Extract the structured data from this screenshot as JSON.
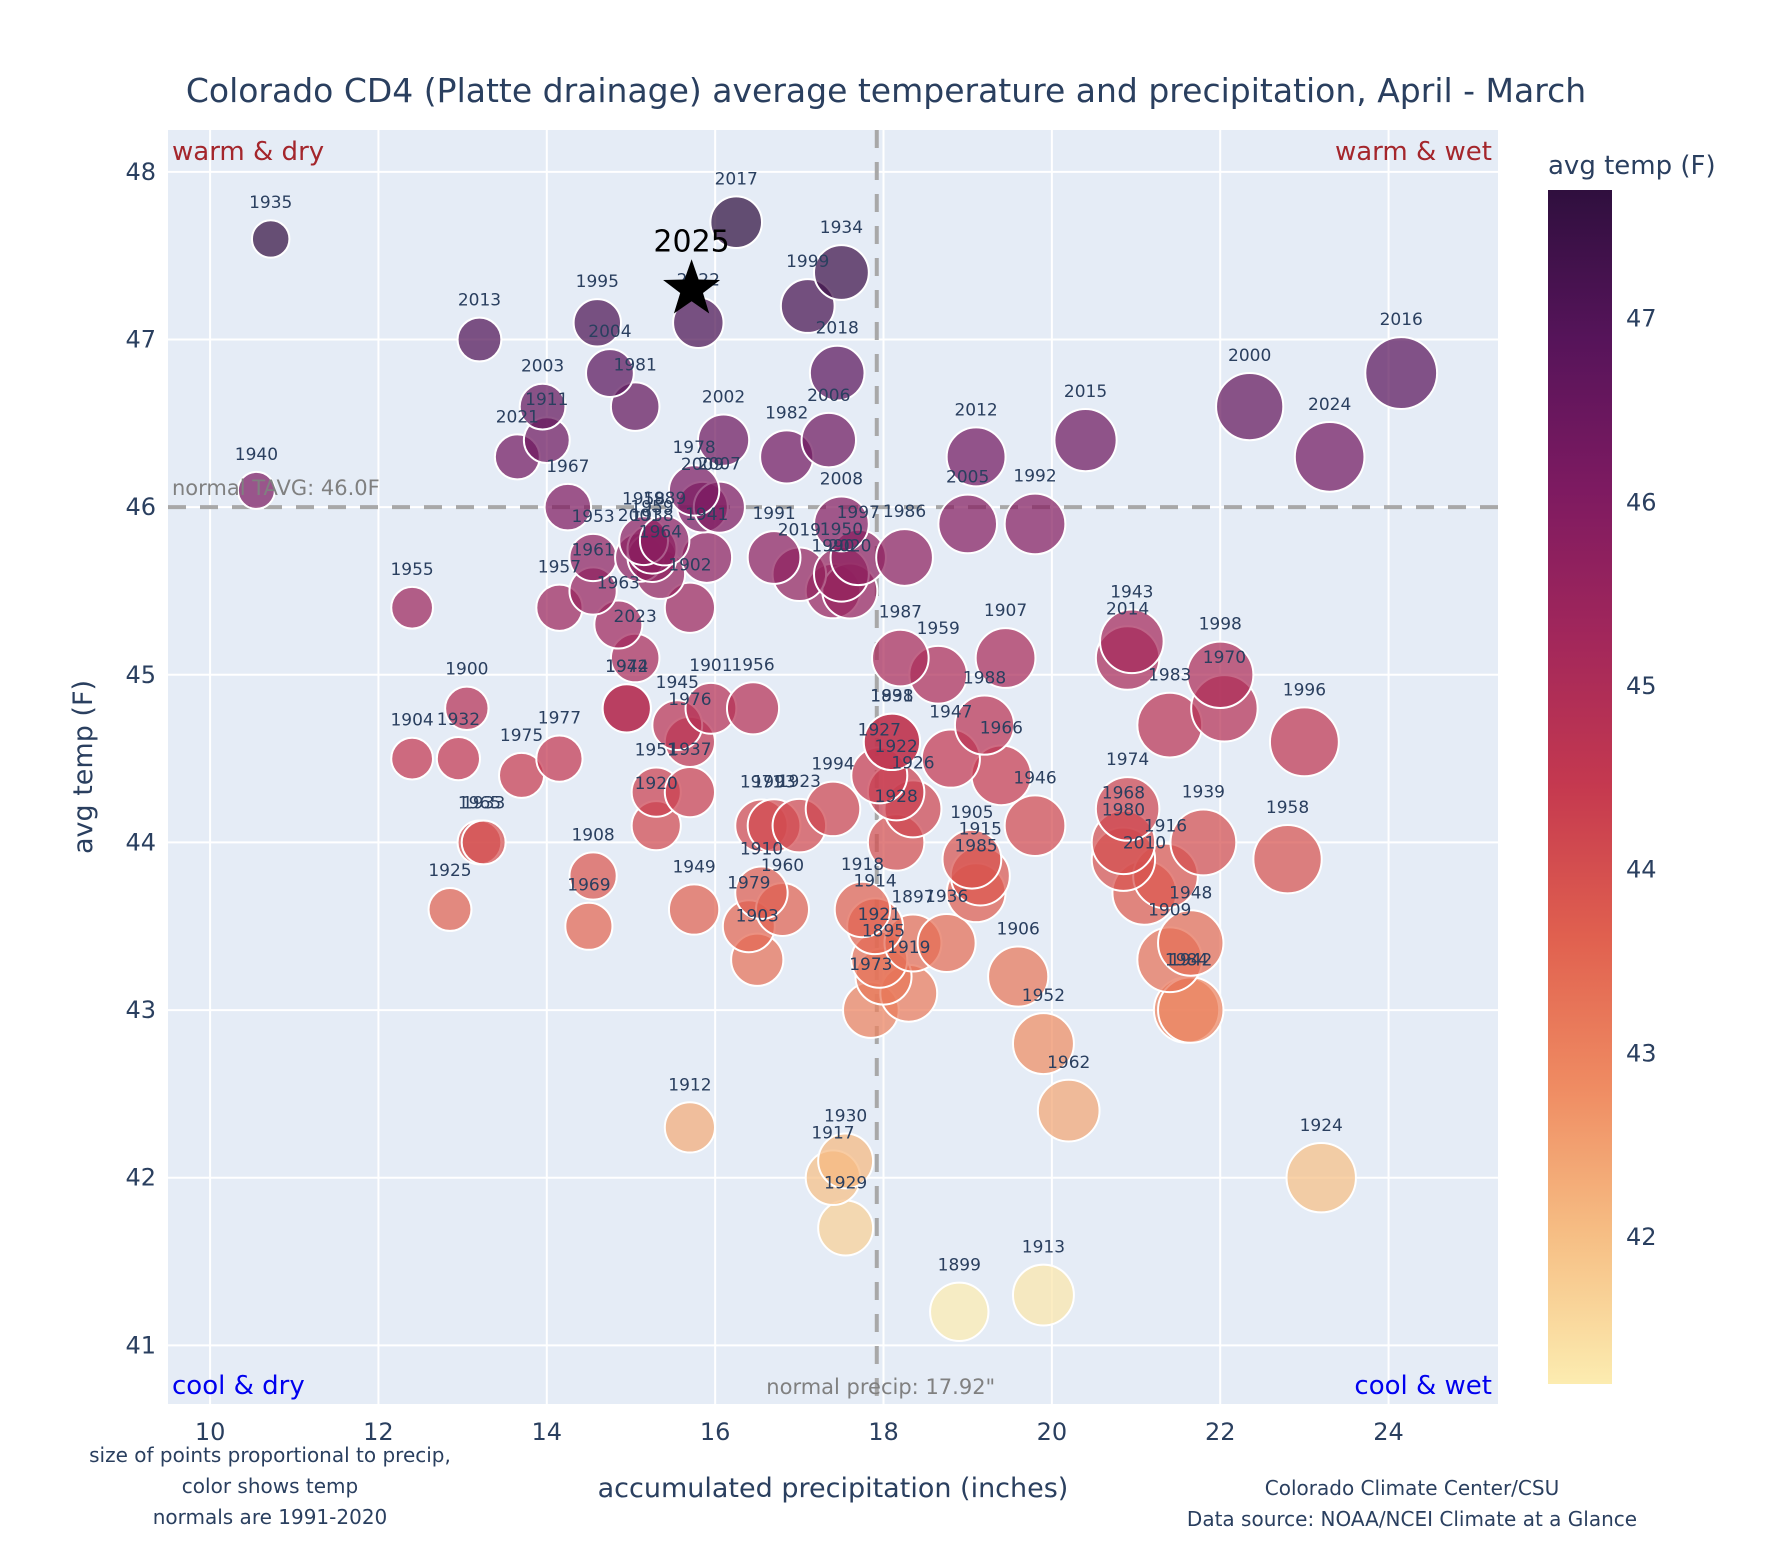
{
  "chart_data": {
    "type": "scatter",
    "title": "Colorado CD4 (Platte drainage) average temperature and precipitation, April - March",
    "xlabel": "accumulated precipitation (inches)",
    "ylabel": "avg temp (F)",
    "xlim": [
      9.5,
      25.3
    ],
    "ylim": [
      40.65,
      48.25
    ],
    "xticks": [
      10,
      12,
      14,
      16,
      18,
      20,
      22,
      24
    ],
    "yticks": [
      41,
      42,
      43,
      44,
      45,
      46,
      47,
      48
    ],
    "grid": true,
    "colorbar": {
      "title": "avg temp (F)",
      "ticks": [
        42,
        43,
        44,
        45,
        46,
        47
      ],
      "range": [
        41.2,
        47.7
      ],
      "colorscale": "magma-like (pale yellow low to dark purple high)",
      "colors": [
        "#fcecb0",
        "#f6be84",
        "#ef8b62",
        "#e0604f",
        "#c5394f",
        "#a2275b",
        "#7d1a61",
        "#56145a",
        "#2f0f3e"
      ]
    },
    "size_encoding": "proportional to precip",
    "reference_lines": {
      "normal_temp": {
        "value": 46.0,
        "label": "normal TAVG: 46.0F"
      },
      "normal_precip": {
        "value": 17.92,
        "label": "normal precip: 17.92\""
      }
    },
    "quadrant_labels": {
      "top_left": "warm & dry",
      "top_right": "warm & wet",
      "bottom_left": "cool & dry",
      "bottom_right": "cool & wet"
    },
    "highlight": {
      "year": "2025",
      "x": 15.72,
      "y": 47.3,
      "marker": "star"
    },
    "points": [
      {
        "year": "1935",
        "x": 10.72,
        "y": 47.6
      },
      {
        "year": "1940",
        "x": 10.55,
        "y": 46.1
      },
      {
        "year": "2013",
        "x": 13.2,
        "y": 47.0
      },
      {
        "year": "1995",
        "x": 14.6,
        "y": 47.1
      },
      {
        "year": "2004",
        "x": 14.75,
        "y": 46.8
      },
      {
        "year": "1981",
        "x": 15.05,
        "y": 46.6
      },
      {
        "year": "2003",
        "x": 13.95,
        "y": 46.6
      },
      {
        "year": "1911",
        "x": 14.0,
        "y": 46.4
      },
      {
        "year": "2021",
        "x": 13.65,
        "y": 46.3
      },
      {
        "year": "1967",
        "x": 14.25,
        "y": 46.0
      },
      {
        "year": "2022",
        "x": 15.8,
        "y": 47.1
      },
      {
        "year": "2017",
        "x": 16.25,
        "y": 47.7
      },
      {
        "year": "1934",
        "x": 17.5,
        "y": 47.4
      },
      {
        "year": "1999",
        "x": 17.1,
        "y": 47.2
      },
      {
        "year": "2018",
        "x": 17.45,
        "y": 46.8
      },
      {
        "year": "2002",
        "x": 16.1,
        "y": 46.4
      },
      {
        "year": "1982",
        "x": 16.85,
        "y": 46.3
      },
      {
        "year": "2006",
        "x": 17.35,
        "y": 46.4
      },
      {
        "year": "1978",
        "x": 15.75,
        "y": 46.1
      },
      {
        "year": "2009",
        "x": 15.85,
        "y": 46.0
      },
      {
        "year": "2007",
        "x": 16.05,
        "y": 46.0
      },
      {
        "year": "1953",
        "x": 14.55,
        "y": 45.7
      },
      {
        "year": "1958",
        "x": 15.15,
        "y": 45.8
      },
      {
        "year": "1959",
        "x": 15.25,
        "y": 45.75
      },
      {
        "year": "1989",
        "x": 15.4,
        "y": 45.8
      },
      {
        "year": "2001",
        "x": 15.1,
        "y": 45.7
      },
      {
        "year": "1938",
        "x": 15.25,
        "y": 45.7
      },
      {
        "year": "1941",
        "x": 15.9,
        "y": 45.7
      },
      {
        "year": "1964",
        "x": 15.35,
        "y": 45.6
      },
      {
        "year": "1961",
        "x": 14.55,
        "y": 45.5
      },
      {
        "year": "1957",
        "x": 14.15,
        "y": 45.4
      },
      {
        "year": "1902",
        "x": 15.7,
        "y": 45.4
      },
      {
        "year": "1963",
        "x": 14.85,
        "y": 45.3
      },
      {
        "year": "2023",
        "x": 15.05,
        "y": 45.1
      },
      {
        "year": "1955",
        "x": 12.4,
        "y": 45.4
      },
      {
        "year": "1991",
        "x": 16.7,
        "y": 45.7
      },
      {
        "year": "2019",
        "x": 17.0,
        "y": 45.6
      },
      {
        "year": "1990",
        "x": 17.4,
        "y": 45.5
      },
      {
        "year": "1950",
        "x": 17.5,
        "y": 45.6
      },
      {
        "year": "2020",
        "x": 17.6,
        "y": 45.5
      },
      {
        "year": "2008",
        "x": 17.5,
        "y": 45.9
      },
      {
        "year": "1997",
        "x": 17.7,
        "y": 45.7
      },
      {
        "year": "1986",
        "x": 18.25,
        "y": 45.7
      },
      {
        "year": "2012",
        "x": 19.1,
        "y": 46.3
      },
      {
        "year": "2005",
        "x": 19.0,
        "y": 45.9
      },
      {
        "year": "1992",
        "x": 19.8,
        "y": 45.9
      },
      {
        "year": "2015",
        "x": 20.4,
        "y": 46.4
      },
      {
        "year": "2000",
        "x": 22.35,
        "y": 46.6
      },
      {
        "year": "2024",
        "x": 23.3,
        "y": 46.3
      },
      {
        "year": "2016",
        "x": 24.15,
        "y": 46.8
      },
      {
        "year": "1987",
        "x": 18.2,
        "y": 45.1
      },
      {
        "year": "1959b",
        "x": 18.65,
        "y": 45.0
      },
      {
        "year": "1907",
        "x": 19.45,
        "y": 45.1
      },
      {
        "year": "1988",
        "x": 19.2,
        "y": 44.7
      },
      {
        "year": "1947",
        "x": 18.8,
        "y": 44.5
      },
      {
        "year": "1966",
        "x": 19.4,
        "y": 44.4
      },
      {
        "year": "1946",
        "x": 19.8,
        "y": 44.1
      },
      {
        "year": "1943",
        "x": 20.95,
        "y": 45.2
      },
      {
        "year": "2014",
        "x": 20.9,
        "y": 45.1
      },
      {
        "year": "1983",
        "x": 21.4,
        "y": 44.7
      },
      {
        "year": "1998",
        "x": 22.0,
        "y": 45.0
      },
      {
        "year": "1970",
        "x": 22.05,
        "y": 44.8
      },
      {
        "year": "1996",
        "x": 23.0,
        "y": 44.6
      },
      {
        "year": "1974",
        "x": 20.9,
        "y": 44.2
      },
      {
        "year": "1968",
        "x": 20.85,
        "y": 44.0
      },
      {
        "year": "1980",
        "x": 20.85,
        "y": 43.9
      },
      {
        "year": "1939",
        "x": 21.8,
        "y": 44.0
      },
      {
        "year": "1916",
        "x": 21.35,
        "y": 43.8
      },
      {
        "year": "2010",
        "x": 21.1,
        "y": 43.7
      },
      {
        "year": "1958b",
        "x": 22.8,
        "y": 43.9
      },
      {
        "year": "1948",
        "x": 21.65,
        "y": 43.4
      },
      {
        "year": "1909",
        "x": 21.4,
        "y": 43.3
      },
      {
        "year": "1984",
        "x": 21.6,
        "y": 43.0
      },
      {
        "year": "1942",
        "x": 21.65,
        "y": 43.0
      },
      {
        "year": "1924",
        "x": 23.2,
        "y": 42.0
      },
      {
        "year": "1900",
        "x": 13.05,
        "y": 44.8
      },
      {
        "year": "1904",
        "x": 12.4,
        "y": 44.5
      },
      {
        "year": "1932",
        "x": 12.95,
        "y": 44.5
      },
      {
        "year": "1975",
        "x": 13.7,
        "y": 44.4
      },
      {
        "year": "1977",
        "x": 14.15,
        "y": 44.5
      },
      {
        "year": "1944",
        "x": 14.95,
        "y": 44.8
      },
      {
        "year": "1972",
        "x": 14.95,
        "y": 44.8
      },
      {
        "year": "1945",
        "x": 15.55,
        "y": 44.7
      },
      {
        "year": "1976",
        "x": 15.7,
        "y": 44.6
      },
      {
        "year": "1901",
        "x": 15.95,
        "y": 44.8
      },
      {
        "year": "1956",
        "x": 16.45,
        "y": 44.8
      },
      {
        "year": "1951",
        "x": 15.3,
        "y": 44.3
      },
      {
        "year": "1937",
        "x": 15.7,
        "y": 44.3
      },
      {
        "year": "1920",
        "x": 15.3,
        "y": 44.1
      },
      {
        "year": "1965",
        "x": 13.2,
        "y": 44.0
      },
      {
        "year": "1933",
        "x": 13.25,
        "y": 44.0
      },
      {
        "year": "1908",
        "x": 14.55,
        "y": 43.8
      },
      {
        "year": "1925",
        "x": 12.85,
        "y": 43.6
      },
      {
        "year": "1969",
        "x": 14.5,
        "y": 43.5
      },
      {
        "year": "1971",
        "x": 16.55,
        "y": 44.1
      },
      {
        "year": "1993",
        "x": 16.7,
        "y": 44.1
      },
      {
        "year": "1923",
        "x": 17.0,
        "y": 44.1
      },
      {
        "year": "1994",
        "x": 17.4,
        "y": 44.2
      },
      {
        "year": "1898",
        "x": 18.1,
        "y": 44.6
      },
      {
        "year": "1931",
        "x": 18.1,
        "y": 44.6
      },
      {
        "year": "1927",
        "x": 17.95,
        "y": 44.4
      },
      {
        "year": "1922",
        "x": 18.15,
        "y": 44.3
      },
      {
        "year": "1926",
        "x": 18.35,
        "y": 44.2
      },
      {
        "year": "1928",
        "x": 18.15,
        "y": 44.0
      },
      {
        "year": "1905",
        "x": 19.05,
        "y": 43.9
      },
      {
        "year": "1915",
        "x": 19.15,
        "y": 43.8
      },
      {
        "year": "1985",
        "x": 19.1,
        "y": 43.7
      },
      {
        "year": "1949",
        "x": 15.75,
        "y": 43.6
      },
      {
        "year": "1910",
        "x": 16.55,
        "y": 43.7
      },
      {
        "year": "1960",
        "x": 16.8,
        "y": 43.6
      },
      {
        "year": "1979",
        "x": 16.4,
        "y": 43.5
      },
      {
        "year": "1903",
        "x": 16.5,
        "y": 43.3
      },
      {
        "year": "1918",
        "x": 17.75,
        "y": 43.6
      },
      {
        "year": "1914",
        "x": 17.9,
        "y": 43.5
      },
      {
        "year": "1897",
        "x": 18.35,
        "y": 43.4
      },
      {
        "year": "1936",
        "x": 18.75,
        "y": 43.4
      },
      {
        "year": "1921",
        "x": 17.95,
        "y": 43.3
      },
      {
        "year": "1895",
        "x": 18.0,
        "y": 43.2
      },
      {
        "year": "1919",
        "x": 18.3,
        "y": 43.1
      },
      {
        "year": "1973",
        "x": 17.85,
        "y": 43.0
      },
      {
        "year": "1906",
        "x": 19.6,
        "y": 43.2
      },
      {
        "year": "1952",
        "x": 19.9,
        "y": 42.8
      },
      {
        "year": "1962",
        "x": 20.2,
        "y": 42.4
      },
      {
        "year": "1912",
        "x": 15.7,
        "y": 42.3
      },
      {
        "year": "1930",
        "x": 17.55,
        "y": 42.1
      },
      {
        "year": "1917",
        "x": 17.4,
        "y": 42.0
      },
      {
        "year": "1929",
        "x": 17.55,
        "y": 41.7
      },
      {
        "year": "1899",
        "x": 18.9,
        "y": 41.2
      },
      {
        "year": "1913",
        "x": 19.9,
        "y": 41.3
      }
    ]
  },
  "footnotes": {
    "left": [
      "size of points proportional to precip,",
      "color shows temp",
      "normals are 1991-2020"
    ],
    "right": [
      "Colorado Climate Center/CSU",
      "Data source: NOAA/NCEI Climate at a Glance"
    ]
  }
}
